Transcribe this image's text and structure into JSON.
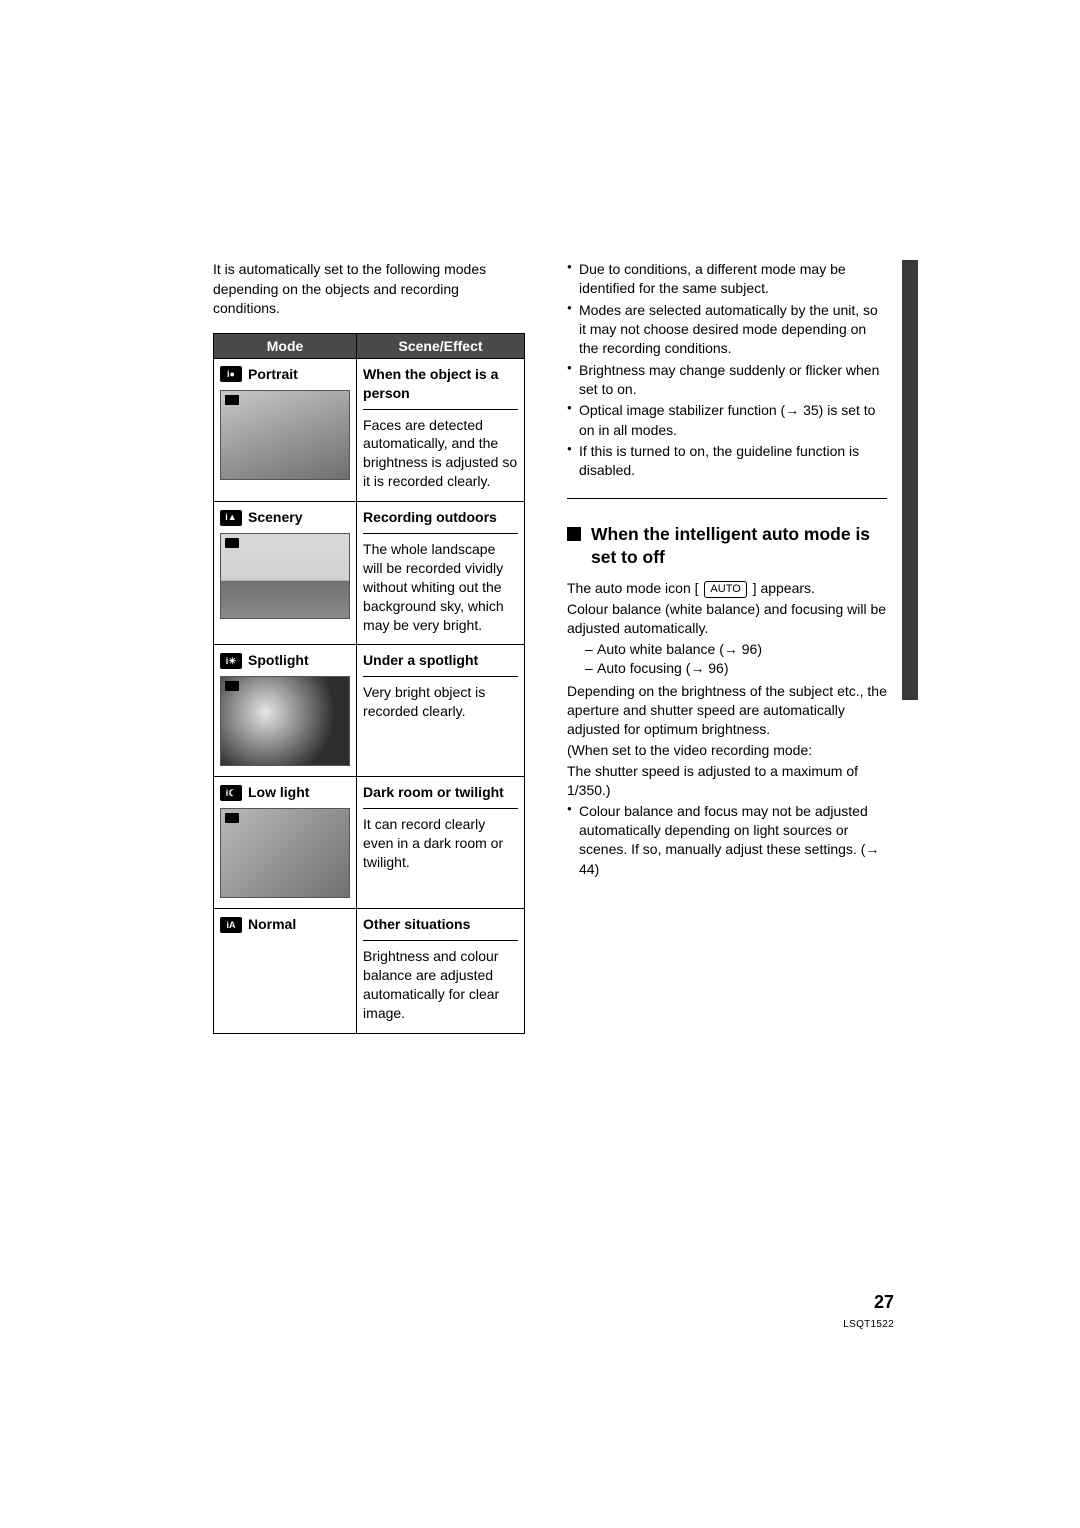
{
  "page": {
    "number": "27",
    "doc_code": "LSQT1522"
  },
  "left": {
    "intro": "It is automatically set to the following modes depending on the objects and recording conditions.",
    "table": {
      "header_mode": "Mode",
      "header_scene": "Scene/Effect",
      "header_bg": "#4a4a4a",
      "header_fg": "#ffffff",
      "border_color": "#000000",
      "rows": [
        {
          "icon_text": "i●",
          "mode": "Portrait",
          "thumb_variant": "portrait",
          "has_thumb": true,
          "scene_title": "When the object is a person",
          "scene_body": "Faces are detected automatically, and the brightness is adjusted so it is recorded clearly."
        },
        {
          "icon_text": "i▲",
          "mode": "Scenery",
          "thumb_variant": "scenery",
          "has_thumb": true,
          "scene_title": "Recording outdoors",
          "scene_body": "The whole landscape will be recorded vividly without whiting out the background sky, which may be very bright."
        },
        {
          "icon_text": "i☀",
          "mode": "Spotlight",
          "thumb_variant": "spotlight",
          "has_thumb": true,
          "scene_title": "Under a spotlight",
          "scene_body": "Very bright object is recorded clearly."
        },
        {
          "icon_text": "i☾",
          "mode": "Low light",
          "thumb_variant": "lowlight",
          "has_thumb": true,
          "scene_title": "Dark room or twilight",
          "scene_body": "It can record clearly even in a dark room or twilight."
        },
        {
          "icon_text": "iA",
          "mode": "Normal",
          "thumb_variant": "none",
          "has_thumb": false,
          "scene_title": "Other situations",
          "scene_body": "Brightness and colour balance are adjusted automatically for clear image."
        }
      ]
    }
  },
  "right": {
    "notes": [
      "Due to conditions, a different mode may be identified for the same subject.",
      "Modes are selected automatically by the unit, so it may not choose desired mode depending on the recording conditions.",
      "Brightness may change suddenly or flicker when set to on.",
      "Optical image stabilizer function (→ 35) is set to on in all modes.",
      "If this is turned to on, the guideline function is disabled."
    ],
    "section_title": "When the intelligent auto mode is set to off",
    "auto_line_pre": "The auto mode icon [",
    "auto_badge": "AUTO",
    "auto_line_post": "] appears.",
    "para1": "Colour balance (white balance) and focusing will be adjusted automatically.",
    "dashes": [
      "Auto white balance (→ 96)",
      "Auto focusing (→ 96)"
    ],
    "para2": "Depending on the brightness of the subject etc., the aperture and shutter speed are automatically adjusted for optimum brightness.",
    "para3a": "(When set to the video recording mode:",
    "para3b": "The shutter speed is adjusted to a maximum of 1/350.)",
    "bullet_after": "Colour balance and focus may not be adjusted automatically depending on light sources or scenes. If so, manually adjust these settings. (→ 44)"
  },
  "style": {
    "body_font_size_pt": 10.5,
    "heading_font_size_pt": 13,
    "text_color": "#000000",
    "page_bg": "#ffffff"
  }
}
